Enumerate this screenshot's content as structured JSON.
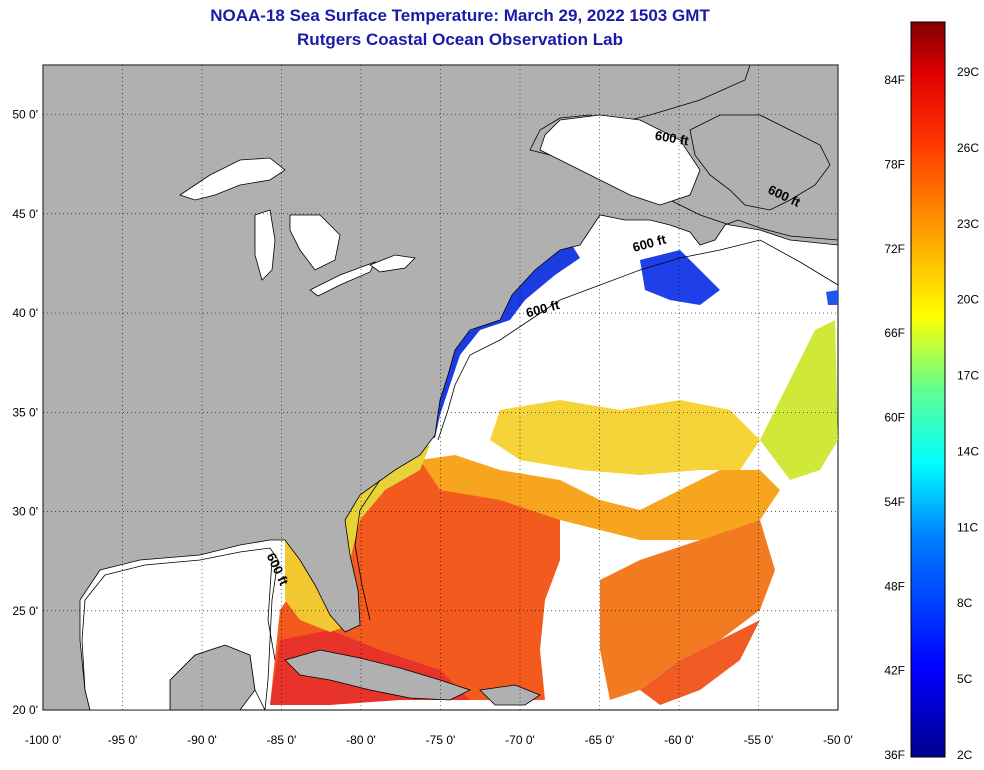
{
  "title_line1": "NOAA-18 Sea Surface Temperature:  March 29, 2022 1503 GMT",
  "title_line2": "Rutgers Coastal Ocean Observation Lab",
  "colors": {
    "land": "#b0b0b0",
    "water_nodata": "#ffffff",
    "title": "#1a1aa8"
  },
  "map": {
    "lon_range": [
      -100,
      -50
    ],
    "lat_range": [
      20,
      52.5
    ],
    "lon_ticks": [
      "-100 0'",
      "-95 0'",
      "-90 0'",
      "-85 0'",
      "-80 0'",
      "-75 0'",
      "-70 0'",
      "-65 0'",
      "-60 0'",
      "-55 0'",
      "-50 0'"
    ],
    "lat_ticks": [
      "20 0'",
      "25 0'",
      "30 0'",
      "35 0'",
      "40 0'",
      "45 0'",
      "50 0'"
    ],
    "grid": "dotted",
    "contour_labels": [
      {
        "text": "600 ft",
        "lon": -60.5,
        "lat": 48.6,
        "rotate": 10
      },
      {
        "text": "600 ft",
        "lon": -53.5,
        "lat": 45.7,
        "rotate": 25
      },
      {
        "text": "600 ft",
        "lon": -61.8,
        "lat": 43.3,
        "rotate": -15
      },
      {
        "text": "600 ft",
        "lon": -68.5,
        "lat": 40.0,
        "rotate": -15
      },
      {
        "text": "600 ft",
        "lon": -85.5,
        "lat": 27.0,
        "rotate": 65
      }
    ]
  },
  "colorbar": {
    "f_labels": [
      "84F",
      "78F",
      "72F",
      "66F",
      "60F",
      "54F",
      "48F",
      "42F",
      "36F"
    ],
    "c_labels": [
      "29C",
      "26C",
      "23C",
      "20C",
      "17C",
      "14C",
      "11C",
      "8C",
      "5C",
      "2C"
    ]
  }
}
